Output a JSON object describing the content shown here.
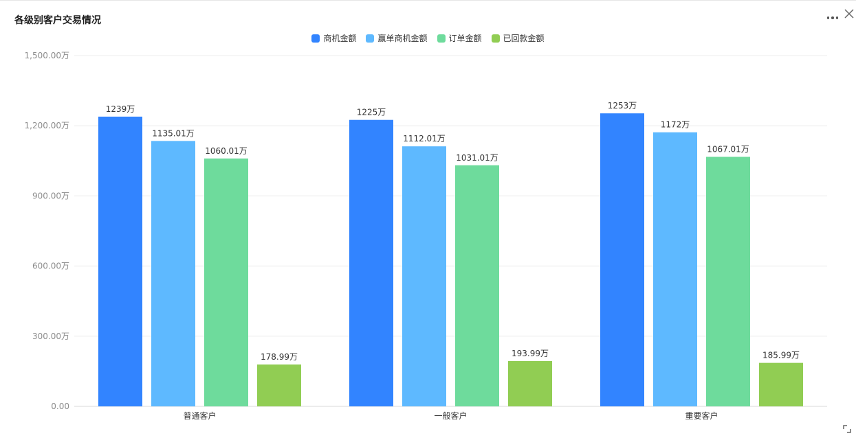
{
  "panel": {
    "title": "各级别客户交易情况"
  },
  "colors": [
    "#3284ff",
    "#5eb9ff",
    "#6edb9c",
    "#91cd53"
  ],
  "chart_data": {
    "type": "bar",
    "categories": [
      "普通客户",
      "一般客户",
      "重要客户"
    ],
    "series": [
      {
        "name": "商机金额",
        "values": [
          1239,
          1225,
          1253
        ],
        "labels": [
          "1239万",
          "1225万",
          "1253万"
        ]
      },
      {
        "name": "赢单商机金额",
        "values": [
          1135.01,
          1112.01,
          1172
        ],
        "labels": [
          "1135.01万",
          "1112.01万",
          "1172万"
        ]
      },
      {
        "name": "订单金额",
        "values": [
          1060.01,
          1031.01,
          1067.01
        ],
        "labels": [
          "1060.01万",
          "1031.01万",
          "1067.01万"
        ]
      },
      {
        "name": "已回款金额",
        "values": [
          178.99,
          193.99,
          185.99
        ],
        "labels": [
          "178.99万",
          "193.99万",
          "185.99万"
        ]
      }
    ],
    "y_ticks": [
      0,
      300,
      600,
      900,
      1200,
      1500
    ],
    "y_tick_labels": [
      "0.00",
      "300.00万",
      "600.00万",
      "900.00万",
      "1,200.00万",
      "1,500.00万"
    ],
    "ylim": [
      0,
      1500
    ],
    "grid": true,
    "legend_position": "top-center"
  }
}
